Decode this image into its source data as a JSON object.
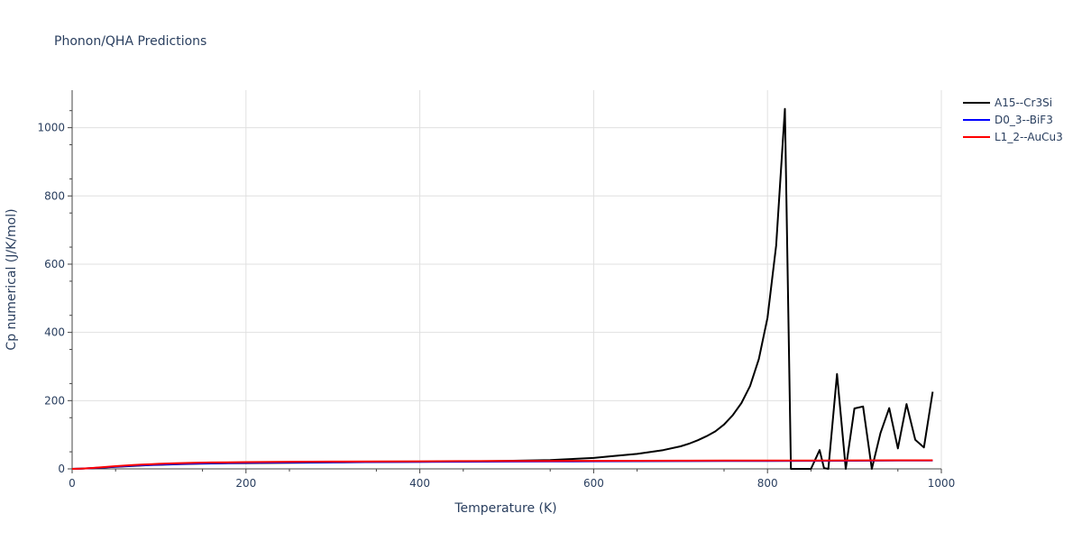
{
  "chart_data": {
    "type": "line",
    "title": "Phonon/QHA Predictions",
    "xlabel": "Temperature (K)",
    "ylabel": "Cp numerical (J/K/mol)",
    "xlim": [
      0,
      1000
    ],
    "ylim": [
      0,
      1110
    ],
    "x_ticks": [
      0,
      200,
      400,
      600,
      800,
      1000
    ],
    "y_ticks": [
      0,
      200,
      400,
      600,
      800,
      1000
    ],
    "grid": true,
    "legend_position": "top-right",
    "series": [
      {
        "name": "A15--Cr3Si",
        "color": "#000000",
        "x": [
          0,
          10,
          20,
          30,
          40,
          50,
          60,
          70,
          80,
          90,
          100,
          120,
          140,
          160,
          180,
          200,
          250,
          300,
          350,
          400,
          450,
          500,
          550,
          600,
          620,
          650,
          680,
          700,
          710,
          720,
          730,
          740,
          750,
          760,
          770,
          780,
          790,
          800,
          810,
          820,
          827,
          850,
          860,
          865,
          870,
          880,
          890,
          900,
          910,
          920,
          930,
          940,
          950,
          960,
          970,
          980,
          990
        ],
        "values": [
          0,
          0.5,
          1.5,
          3,
          4.5,
          6,
          7.5,
          8.8,
          10,
          11,
          12,
          13.5,
          14.8,
          15.8,
          16.5,
          17,
          18,
          19,
          20,
          21,
          22,
          23.5,
          26,
          32,
          37,
          44,
          55,
          66,
          74,
          84,
          96,
          110,
          130,
          157,
          193,
          243,
          322,
          443,
          655,
          1055,
          0,
          0,
          55,
          2,
          0,
          278,
          0,
          177,
          183,
          0,
          105,
          178,
          60,
          190,
          85,
          63,
          226
        ]
      },
      {
        "name": "D0_3--BiF3",
        "color": "#0000ff",
        "x": [
          0,
          10,
          20,
          30,
          40,
          50,
          60,
          70,
          80,
          90,
          100,
          120,
          140,
          160,
          180,
          200,
          250,
          300,
          350,
          400,
          450,
          500,
          550,
          600,
          650,
          700,
          750,
          800,
          850,
          900,
          950,
          990
        ],
        "values": [
          0,
          0.6,
          1.8,
          3.4,
          5,
          6.6,
          8,
          9.4,
          10.6,
          11.7,
          12.7,
          14.3,
          15.5,
          16.4,
          17.1,
          17.7,
          18.8,
          19.5,
          20,
          20.5,
          21,
          21.4,
          21.8,
          22.1,
          22.4,
          22.7,
          23,
          23.3,
          23.6,
          23.9,
          24.2,
          24.5
        ]
      },
      {
        "name": "L1_2--AuCu3",
        "color": "#ff0000",
        "x": [
          0,
          10,
          20,
          30,
          40,
          50,
          60,
          70,
          80,
          90,
          100,
          120,
          140,
          160,
          180,
          200,
          250,
          300,
          350,
          400,
          450,
          500,
          550,
          600,
          650,
          700,
          750,
          800,
          850,
          900,
          950,
          990
        ],
        "values": [
          0,
          0.8,
          2.2,
          4,
          6,
          7.8,
          9.4,
          11,
          12.4,
          13.6,
          14.7,
          16.5,
          17.8,
          18.7,
          19.4,
          19.9,
          20.8,
          21.4,
          21.9,
          22.3,
          22.7,
          23,
          23.3,
          23.6,
          23.8,
          24,
          24.2,
          24.4,
          24.6,
          24.8,
          25,
          25.2
        ]
      }
    ]
  }
}
